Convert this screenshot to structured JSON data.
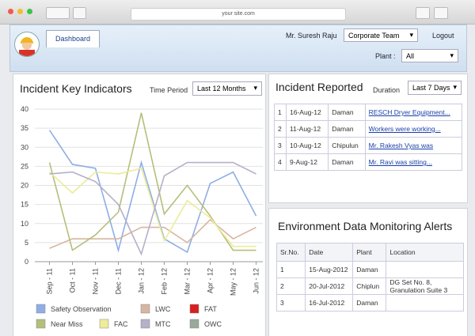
{
  "browser": {
    "url": "your site.com"
  },
  "header": {
    "tab": "Dashboard",
    "user": "Mr. Suresh Raju",
    "team": "Corporate Team",
    "logout": "Logout",
    "plant_label": "Plant :",
    "plant": "All"
  },
  "chart_panel": {
    "title": "Incident Key Indicators",
    "period_label": "Time Period",
    "period": "Last 12 Months"
  },
  "chart_data": {
    "type": "line",
    "categories": [
      "Sep - 11",
      "Oct - 11",
      "Nov - 11",
      "Dec - 11",
      "Jan - 12",
      "Feb - 12",
      "Mar - 12",
      "Apr - 12",
      "May - 12",
      "Jun - 12"
    ],
    "ylim": [
      0,
      40
    ],
    "yticks": [
      0,
      5,
      10,
      15,
      20,
      25,
      30,
      35,
      40
    ],
    "grid": true,
    "series": [
      {
        "name": "Safety Observation",
        "color": "#8faee6",
        "values": [
          34.5,
          25.5,
          24.5,
          3,
          26,
          6,
          2.5,
          20.5,
          23.5,
          12
        ]
      },
      {
        "name": "LWC",
        "color": "#d8b5a0",
        "values": [
          3.5,
          6,
          6,
          6,
          9,
          9,
          5,
          11,
          6,
          9
        ]
      },
      {
        "name": "FAT",
        "color": "#d81e1e",
        "values": [
          null,
          null,
          null,
          null,
          null,
          null,
          null,
          null,
          null,
          null
        ]
      },
      {
        "name": "Near Miss",
        "color": "#b5bf7a",
        "values": [
          26,
          3,
          7,
          13,
          39,
          12.5,
          20,
          12,
          3,
          3
        ]
      },
      {
        "name": "FAC",
        "color": "#ecec9a",
        "values": [
          23.5,
          18,
          23.5,
          23,
          24.5,
          5.5,
          16,
          11.5,
          4,
          4
        ]
      },
      {
        "name": "MTC",
        "color": "#b6b0c8",
        "values": [
          23,
          23.5,
          21,
          15,
          2,
          22.5,
          26,
          26,
          26,
          23
        ]
      },
      {
        "name": "OWC",
        "color": "#9aa89a",
        "values": [
          null,
          null,
          null,
          null,
          null,
          null,
          null,
          null,
          null,
          null
        ]
      }
    ]
  },
  "incidents": {
    "title": "Incident Reported",
    "duration_label": "Duration",
    "duration": "Last 7 Days",
    "rows": [
      [
        1,
        "16-Aug-12",
        "Daman",
        "RESCH Dryer Equipment..."
      ],
      [
        2,
        "11-Aug-12",
        "Daman",
        "Workers were working..."
      ],
      [
        3,
        "10-Aug-12",
        "Chipulun",
        "Mr. Rakesh Vyas was"
      ],
      [
        4,
        "9-Aug-12",
        "Daman",
        "Mr. Ravi was sitting..."
      ]
    ]
  },
  "environment": {
    "title": "Environment Data Monitoring Alerts",
    "columns": [
      "Sr.No.",
      "Date",
      "Plant",
      "Location"
    ],
    "rows": [
      [
        1,
        "15-Aug-2012",
        "Daman"
      ],
      [
        2,
        "20-Jul-2012",
        "Chiplun",
        "DG Set No. 8, Granulation Suite 3"
      ],
      [
        3,
        "16-Jul-2012",
        "Daman"
      ]
    ]
  }
}
